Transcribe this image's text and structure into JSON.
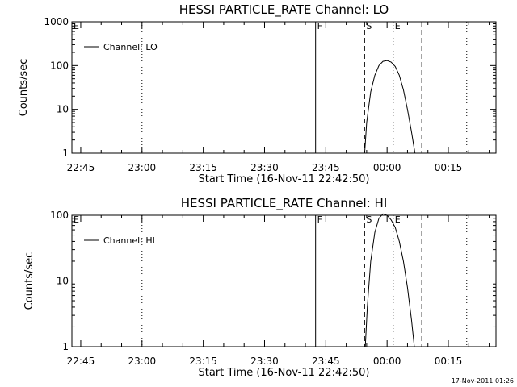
{
  "footer": {
    "date": "17-Nov-2011 01:26"
  },
  "chart_data": [
    {
      "type": "line",
      "title": "HESSI PARTICLE_RATE Channel: LO",
      "xlabel": "Start Time (16-Nov-11 22:42:50)",
      "ylabel": "Counts/sec",
      "yscale": "log",
      "ylim": [
        1,
        1000
      ],
      "yticks": [
        1,
        10,
        100,
        1000
      ],
      "ytick_labels": [
        "1",
        "10",
        "100",
        "1000"
      ],
      "xlim": [
        "22:42:50",
        "00:26:40"
      ],
      "xticks": [
        "22:45",
        "23:00",
        "23:15",
        "23:30",
        "23:45",
        "00:00",
        "00:15"
      ],
      "legend": {
        "position": "top-left",
        "entries": [
          "Channel: LO"
        ]
      },
      "markers": [
        {
          "label": "E",
          "time": "22:42:50",
          "style": "solid"
        },
        {
          "label": "",
          "time": "23:00",
          "style": "dotted"
        },
        {
          "label": "F",
          "time": "23:42:30",
          "style": "solid"
        },
        {
          "label": "S",
          "time": "23:54:30",
          "style": "dashed"
        },
        {
          "label": "E",
          "time": "00:01:30",
          "style": "dotted"
        },
        {
          "label": "",
          "time": "00:08:30",
          "style": "dashed"
        },
        {
          "label": "",
          "time": "00:19:30",
          "style": "dotted"
        }
      ],
      "series": [
        {
          "name": "Channel: LO",
          "x": [
            "23:54:30",
            "23:55:00",
            "23:56:00",
            "23:57:00",
            "23:58:00",
            "23:59:00",
            "00:00:00",
            "00:01:00",
            "00:02:00",
            "00:03:00",
            "00:04:00",
            "00:05:00",
            "00:06:00",
            "00:06:50"
          ],
          "y": [
            1,
            5,
            25,
            60,
            100,
            125,
            130,
            120,
            95,
            60,
            28,
            10,
            3,
            1
          ]
        }
      ]
    },
    {
      "type": "line",
      "title": "HESSI PARTICLE_RATE Channel: HI",
      "xlabel": "Start Time (16-Nov-11 22:42:50)",
      "ylabel": "Counts/sec",
      "yscale": "log",
      "ylim": [
        1,
        100
      ],
      "yticks": [
        1,
        10,
        100
      ],
      "ytick_labels": [
        "1",
        "10",
        "100"
      ],
      "xlim": [
        "22:42:50",
        "00:26:40"
      ],
      "xticks": [
        "22:45",
        "23:00",
        "23:15",
        "23:30",
        "23:45",
        "00:00",
        "00:15"
      ],
      "legend": {
        "position": "top-left",
        "entries": [
          "Channel: HI"
        ]
      },
      "markers": [
        {
          "label": "E",
          "time": "22:42:50",
          "style": "solid"
        },
        {
          "label": "",
          "time": "23:00",
          "style": "dotted"
        },
        {
          "label": "F",
          "time": "23:42:30",
          "style": "solid"
        },
        {
          "label": "S",
          "time": "23:54:30",
          "style": "dashed"
        },
        {
          "label": "E",
          "time": "00:01:30",
          "style": "dotted"
        },
        {
          "label": "",
          "time": "00:08:30",
          "style": "dashed"
        },
        {
          "label": "",
          "time": "00:19:30",
          "style": "dotted"
        }
      ],
      "series": [
        {
          "name": "Channel: HI",
          "x": [
            "23:54:40",
            "23:55:10",
            "23:56:00",
            "23:57:00",
            "23:58:00",
            "23:59:00",
            "00:00:00",
            "00:01:00",
            "00:02:00",
            "00:03:00",
            "00:04:00",
            "00:05:00",
            "00:06:00",
            "00:06:40"
          ],
          "y": [
            1,
            4,
            20,
            55,
            90,
            105,
            100,
            85,
            65,
            40,
            20,
            8,
            2.5,
            1
          ]
        }
      ]
    }
  ]
}
